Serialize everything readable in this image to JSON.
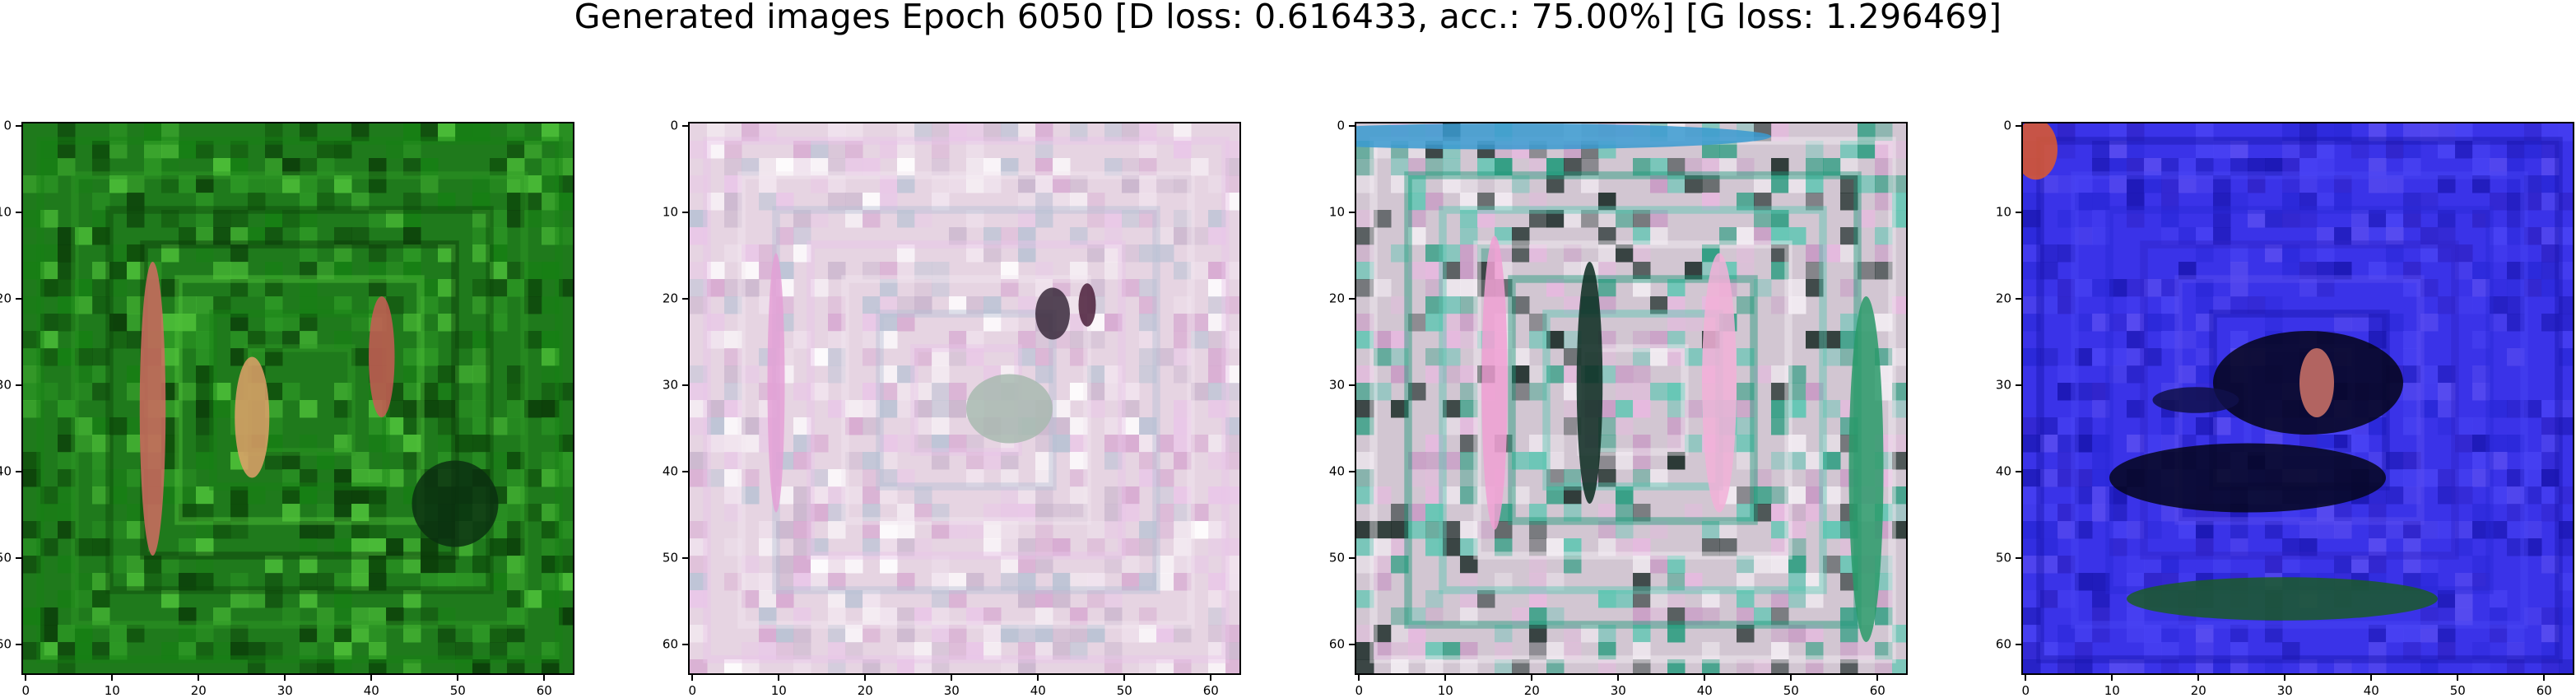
{
  "figure": {
    "title": "Generated images Epoch 6050 [D loss: 0.616433, acc.: 75.00%] [G loss: 1.296469]",
    "tick_values": [
      "0",
      "10",
      "20",
      "30",
      "40",
      "50",
      "60"
    ],
    "image_size": 64
  },
  "panels": [
    {
      "base": "#1f7a1c",
      "palette": [
        "#0d4a0a",
        "#2e9a26",
        "#168013",
        "#4fc23a",
        "#0a3a08"
      ],
      "blobs": [
        {
          "x": 15,
          "y": 33,
          "w": 3,
          "h": 34,
          "color": "#d16b62"
        },
        {
          "x": 26.5,
          "y": 34,
          "w": 4,
          "h": 14,
          "color": "#e0a06a"
        },
        {
          "x": 41.5,
          "y": 27,
          "w": 3,
          "h": 14,
          "color": "#c85a55"
        },
        {
          "x": 50,
          "y": 44,
          "w": 10,
          "h": 10,
          "color": "#0a3010"
        }
      ]
    },
    {
      "base": "#e6d4e2",
      "palette": [
        "#f2e6f0",
        "#c8b4cc",
        "#e9c6e8",
        "#ffffff",
        "#b8c2d4",
        "#d6a7d0"
      ],
      "blobs": [
        {
          "x": 42,
          "y": 22,
          "w": 4,
          "h": 6,
          "color": "#3a2a3c"
        },
        {
          "x": 46,
          "y": 21,
          "w": 2,
          "h": 5,
          "color": "#4a1e3a"
        },
        {
          "x": 37,
          "y": 33,
          "w": 10,
          "h": 8,
          "color": "#a8bab0"
        },
        {
          "x": 10,
          "y": 30,
          "w": 2,
          "h": 30,
          "color": "#e4a0d6"
        }
      ]
    },
    {
      "base": "#d2c6d2",
      "palette": [
        "#1f9a7a",
        "#e8b8e0",
        "#f4eef4",
        "#1a2a26",
        "#5cc6b2",
        "#c898c4"
      ],
      "blobs": [
        {
          "x": 18,
          "y": 1.5,
          "w": 60,
          "h": 3,
          "color": "#3a9ad0"
        },
        {
          "x": 16,
          "y": 30,
          "w": 3,
          "h": 34,
          "color": "#f0a0d4"
        },
        {
          "x": 42,
          "y": 30,
          "w": 4,
          "h": 30,
          "color": "#f2b0d8"
        },
        {
          "x": 27,
          "y": 30,
          "w": 3,
          "h": 28,
          "color": "#0a2a20"
        },
        {
          "x": 59,
          "y": 40,
          "w": 4,
          "h": 40,
          "color": "#2a9a6a"
        }
      ]
    },
    {
      "base": "#3a33e8",
      "palette": [
        "#2a28d8",
        "#4a44f4",
        "#1a16b0",
        "#5a4ef0",
        "#3024c8"
      ],
      "blobs": [
        {
          "x": 33,
          "y": 30,
          "w": 22,
          "h": 12,
          "color": "#05051a"
        },
        {
          "x": 26,
          "y": 41,
          "w": 32,
          "h": 8,
          "color": "#05061c"
        },
        {
          "x": 20,
          "y": 32,
          "w": 10,
          "h": 3,
          "color": "#10104a"
        },
        {
          "x": 34,
          "y": 30,
          "w": 4,
          "h": 8,
          "color": "#d07468"
        },
        {
          "x": 30,
          "y": 55,
          "w": 36,
          "h": 5,
          "color": "#1b5a28"
        },
        {
          "x": 1.5,
          "y": 3,
          "w": 5,
          "h": 7,
          "color": "#e05a2a"
        }
      ]
    }
  ]
}
